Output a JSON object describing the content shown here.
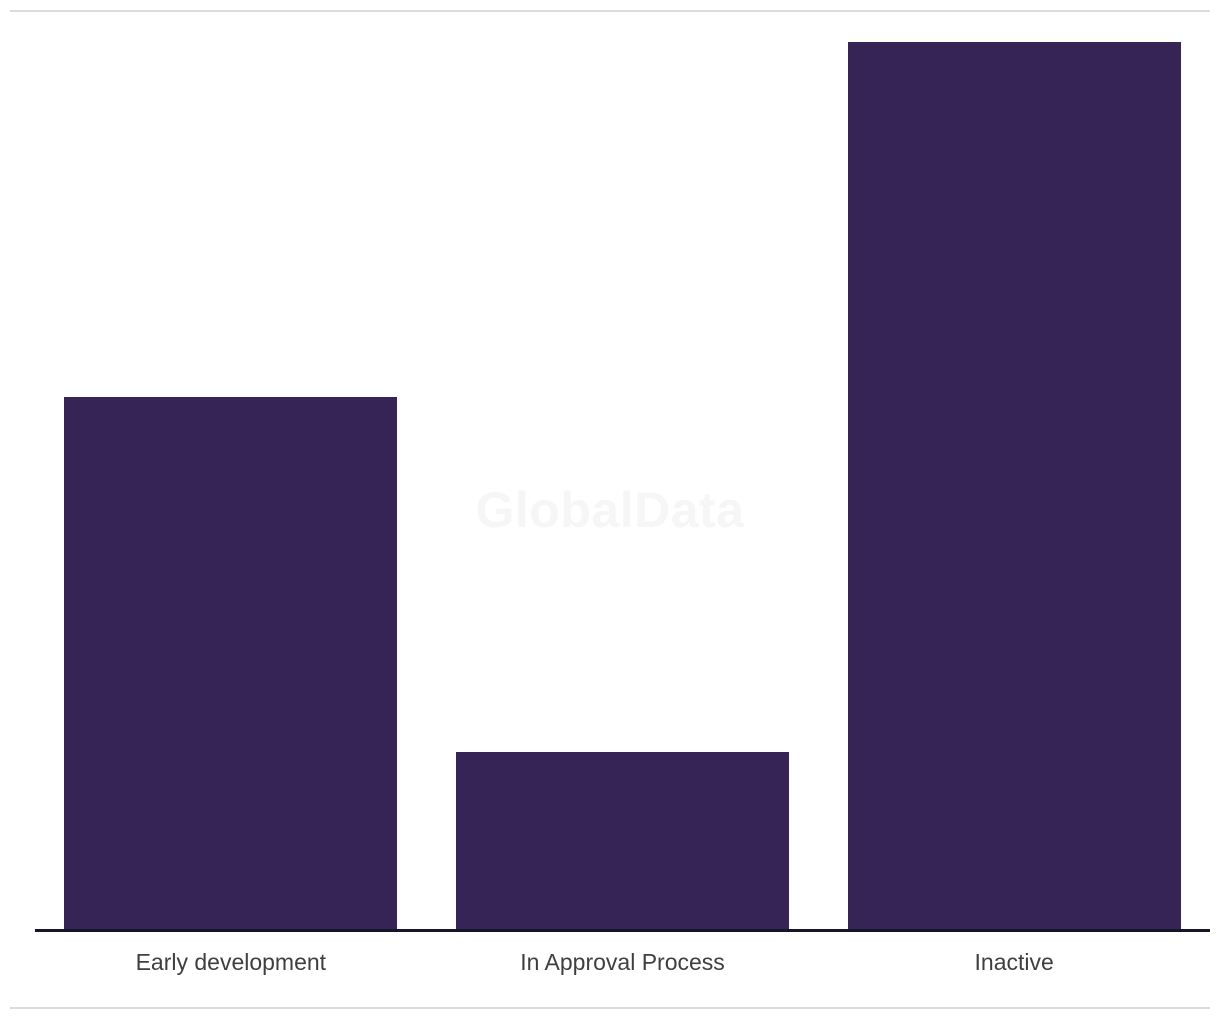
{
  "watermark": "GlobalData",
  "colors": {
    "bar": "#362457",
    "axis": "#151729",
    "divider": "#dcdcdc",
    "label": "#3f3f3f",
    "watermark": "#f6f6f6"
  },
  "chart_data": {
    "type": "bar",
    "categories": [
      "Early development",
      "In Approval Process",
      "Inactive"
    ],
    "values": [
      3,
      1,
      5
    ],
    "title": "",
    "xlabel": "",
    "ylabel": "",
    "ylim": [
      0,
      5
    ],
    "grid": false,
    "legend": false,
    "y_axis_visible": false,
    "watermark": "GlobalData"
  }
}
